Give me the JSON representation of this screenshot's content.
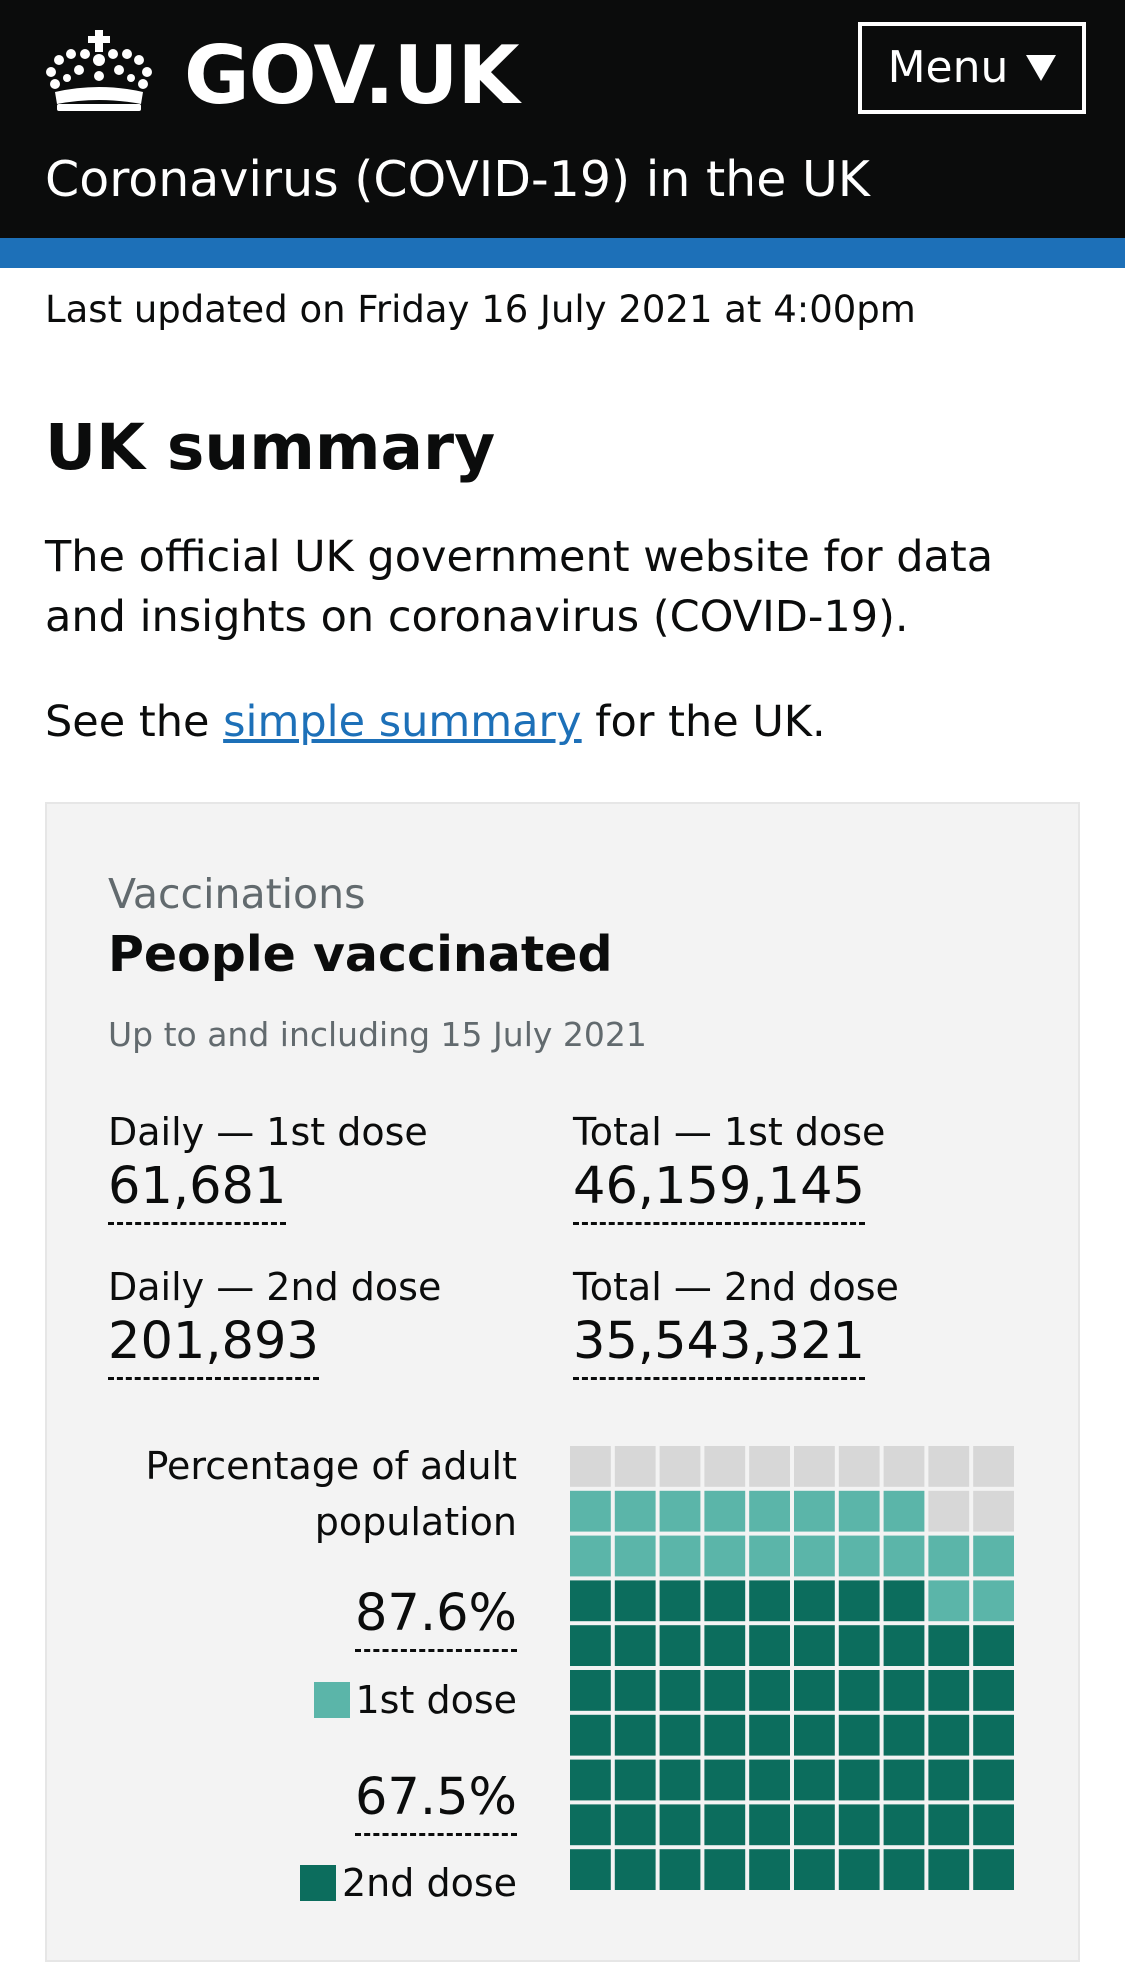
{
  "header": {
    "logo_text": "GOV.UK",
    "menu_label": "Menu",
    "service_name": "Coronavirus (COVID-19) in the UK",
    "colors": {
      "background": "#0b0c0c",
      "accent_bar": "#1d70b8"
    }
  },
  "last_updated": "Last updated on Friday 16 July 2021 at 4:00pm",
  "page_title": "UK summary",
  "intro": "The official UK government website for data and insights on coronavirus (COVID-19).",
  "see_line": {
    "prefix": "See the ",
    "link_text": "simple summary",
    "suffix": " for the UK."
  },
  "card": {
    "caption": "Vaccinations",
    "title": "People vaccinated",
    "date_note": "Up to and including 15 July 2021",
    "metrics": [
      {
        "label": "Daily — 1st dose",
        "value": "61,681"
      },
      {
        "label": "Total — 1st dose",
        "value": "46,159,145"
      },
      {
        "label": "Daily — 2nd dose",
        "value": "201,893"
      },
      {
        "label": "Total — 2nd dose",
        "value": "35,543,321"
      }
    ],
    "waffle": {
      "heading": "Percentage of adult population",
      "first_dose_percent": "87.6%",
      "first_dose_label": "1st dose",
      "second_dose_percent": "67.5%",
      "second_dose_label": "2nd dose",
      "colors": {
        "first_dose": "#5bb5a9",
        "second_dose": "#00703c",
        "second_dose_dark": "#0c6d5d",
        "remaining": "#d7d7d7"
      }
    }
  },
  "chart_data": {
    "type": "waffle",
    "title": "Percentage of adult population",
    "grid": {
      "columns": 10,
      "rows": 10
    },
    "series": [
      {
        "name": "1st dose",
        "value": 87.6
      },
      {
        "name": "2nd dose",
        "value": 67.5
      }
    ]
  }
}
